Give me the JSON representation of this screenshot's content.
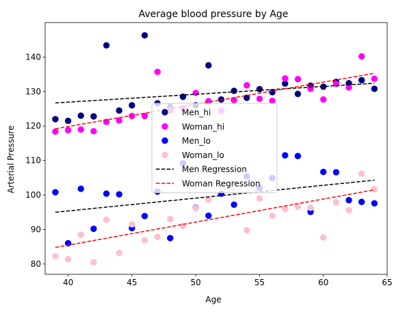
{
  "chart_data": {
    "type": "scatter",
    "title": "Average blood pressure by Age",
    "xlabel": "Age",
    "ylabel": "Arterial Pressure",
    "xlim": [
      38.2,
      65.0
    ],
    "ylim": [
      77.0,
      150.0
    ],
    "xticks": [
      40,
      45,
      50,
      55,
      60,
      65
    ],
    "yticks": [
      80,
      90,
      100,
      110,
      120,
      130,
      140
    ],
    "grid": false,
    "legend_position": "center",
    "series": [
      {
        "name": "Men_hi",
        "kind": "scatter",
        "color": "#000080",
        "points": [
          {
            "x": 39,
            "y": 122
          },
          {
            "x": 40,
            "y": 121.5
          },
          {
            "x": 41,
            "y": 123
          },
          {
            "x": 42,
            "y": 122.8
          },
          {
            "x": 43,
            "y": 143.4
          },
          {
            "x": 44,
            "y": 124.5
          },
          {
            "x": 45,
            "y": 126
          },
          {
            "x": 46,
            "y": 146.3
          },
          {
            "x": 47,
            "y": 126.6
          },
          {
            "x": 48,
            "y": 125.5
          },
          {
            "x": 49,
            "y": 128.5
          },
          {
            "x": 50,
            "y": 126
          },
          {
            "x": 51,
            "y": 137.6
          },
          {
            "x": 52,
            "y": 127.7
          },
          {
            "x": 53,
            "y": 130.2
          },
          {
            "x": 54,
            "y": 128.2
          },
          {
            "x": 55,
            "y": 130.7
          },
          {
            "x": 56,
            "y": 129.8
          },
          {
            "x": 57,
            "y": 132.3
          },
          {
            "x": 58,
            "y": 129.3
          },
          {
            "x": 59,
            "y": 131.7
          },
          {
            "x": 60,
            "y": 131.4
          },
          {
            "x": 61,
            "y": 132.8
          },
          {
            "x": 62,
            "y": 132.4
          },
          {
            "x": 63,
            "y": 133.3
          },
          {
            "x": 64,
            "y": 130.8
          }
        ]
      },
      {
        "name": "Woman_hi",
        "kind": "scatter",
        "color": "#ff00ff",
        "points": [
          {
            "x": 39,
            "y": 118.4
          },
          {
            "x": 40,
            "y": 118.8
          },
          {
            "x": 41,
            "y": 119
          },
          {
            "x": 42,
            "y": 118.5
          },
          {
            "x": 43,
            "y": 121.2
          },
          {
            "x": 44,
            "y": 121.6
          },
          {
            "x": 45,
            "y": 122.9
          },
          {
            "x": 46,
            "y": 122.9
          },
          {
            "x": 47,
            "y": 135.7
          },
          {
            "x": 48,
            "y": 124.6
          },
          {
            "x": 49,
            "y": 125.1
          },
          {
            "x": 50,
            "y": 129.6
          },
          {
            "x": 51,
            "y": 127.2
          },
          {
            "x": 52,
            "y": 124.5
          },
          {
            "x": 53,
            "y": 127.5
          },
          {
            "x": 54,
            "y": 131.8
          },
          {
            "x": 55,
            "y": 127.9
          },
          {
            "x": 56,
            "y": 127.3
          },
          {
            "x": 57,
            "y": 133.8
          },
          {
            "x": 58,
            "y": 133.6
          },
          {
            "x": 59,
            "y": 130.8
          },
          {
            "x": 60,
            "y": 127.7
          },
          {
            "x": 61,
            "y": 132.2
          },
          {
            "x": 62,
            "y": 131.2
          },
          {
            "x": 63,
            "y": 140.2
          },
          {
            "x": 64,
            "y": 133.7
          }
        ]
      },
      {
        "name": "Men_lo",
        "kind": "scatter",
        "color": "#0000ff",
        "points": [
          {
            "x": 39,
            "y": 100.8
          },
          {
            "x": 40,
            "y": 86
          },
          {
            "x": 41,
            "y": 101.8
          },
          {
            "x": 42,
            "y": 90.2
          },
          {
            "x": 43,
            "y": 100.4
          },
          {
            "x": 44,
            "y": 100.2
          },
          {
            "x": 45,
            "y": 90.4
          },
          {
            "x": 46,
            "y": 93.9
          },
          {
            "x": 47,
            "y": 101
          },
          {
            "x": 48,
            "y": 87.5
          },
          {
            "x": 49,
            "y": 109.2
          },
          {
            "x": 50,
            "y": 96.3
          },
          {
            "x": 51,
            "y": 94
          },
          {
            "x": 52,
            "y": 100.4
          },
          {
            "x": 53,
            "y": 97.2
          },
          {
            "x": 54,
            "y": 105.4
          },
          {
            "x": 55,
            "y": 102
          },
          {
            "x": 56,
            "y": 104.9
          },
          {
            "x": 57,
            "y": 111.5
          },
          {
            "x": 58,
            "y": 111.3
          },
          {
            "x": 59,
            "y": 95.1
          },
          {
            "x": 60,
            "y": 106.7
          },
          {
            "x": 61,
            "y": 106.6
          },
          {
            "x": 62,
            "y": 98.5
          },
          {
            "x": 63,
            "y": 98
          },
          {
            "x": 64,
            "y": 97.6
          }
        ]
      },
      {
        "name": "Woman_lo",
        "kind": "scatter",
        "color": "#ffc0cb",
        "points": [
          {
            "x": 39,
            "y": 82.3
          },
          {
            "x": 40,
            "y": 81.4
          },
          {
            "x": 41,
            "y": 88.5
          },
          {
            "x": 42,
            "y": 80.5
          },
          {
            "x": 43,
            "y": 92.8
          },
          {
            "x": 44,
            "y": 83.2
          },
          {
            "x": 45,
            "y": 91.5
          },
          {
            "x": 46,
            "y": 86.9
          },
          {
            "x": 47,
            "y": 87.9
          },
          {
            "x": 48,
            "y": 93
          },
          {
            "x": 49,
            "y": 91
          },
          {
            "x": 50,
            "y": 96.2
          },
          {
            "x": 51,
            "y": 98.6
          },
          {
            "x": 52,
            "y": 102.5
          },
          {
            "x": 53,
            "y": 101.2
          },
          {
            "x": 54,
            "y": 89.8
          },
          {
            "x": 55,
            "y": 99
          },
          {
            "x": 56,
            "y": 94
          },
          {
            "x": 57,
            "y": 95.9
          },
          {
            "x": 58,
            "y": 96.6
          },
          {
            "x": 59,
            "y": 96.3
          },
          {
            "x": 60,
            "y": 87.7
          },
          {
            "x": 61,
            "y": 97.9
          },
          {
            "x": 62,
            "y": 95.6
          },
          {
            "x": 63,
            "y": 106.2
          },
          {
            "x": 64,
            "y": 101.7
          }
        ]
      },
      {
        "name": "Men Regression",
        "kind": "line",
        "dashed": true,
        "color": "#000000",
        "points": [
          {
            "x": 39,
            "y": 126.7
          },
          {
            "x": 64,
            "y": 132.4
          }
        ]
      },
      {
        "name": "Woman Regression",
        "kind": "line",
        "dashed": true,
        "color": "#ff0000",
        "points": [
          {
            "x": 39,
            "y": 119.2
          },
          {
            "x": 64,
            "y": 135.3
          }
        ]
      },
      {
        "kind": "line",
        "dashed": true,
        "color": "#000000",
        "points": [
          {
            "x": 39,
            "y": 95
          },
          {
            "x": 64,
            "y": 104.3
          }
        ]
      },
      {
        "kind": "line",
        "dashed": true,
        "color": "#ff0000",
        "points": [
          {
            "x": 39,
            "y": 84.8
          },
          {
            "x": 64,
            "y": 101.5
          }
        ]
      }
    ],
    "legend": [
      {
        "label": "Men_hi",
        "color": "#000080",
        "marker": "dot"
      },
      {
        "label": "Woman_hi",
        "color": "#ff00ff",
        "marker": "dot"
      },
      {
        "label": "Men_lo",
        "color": "#0000ff",
        "marker": "dot"
      },
      {
        "label": "Woman_lo",
        "color": "#ffc0cb",
        "marker": "dot"
      },
      {
        "label": "Men Regression",
        "color": "#000000",
        "marker": "dash"
      },
      {
        "label": "Woman Regression",
        "color": "#ff0000",
        "marker": "dash"
      }
    ]
  }
}
